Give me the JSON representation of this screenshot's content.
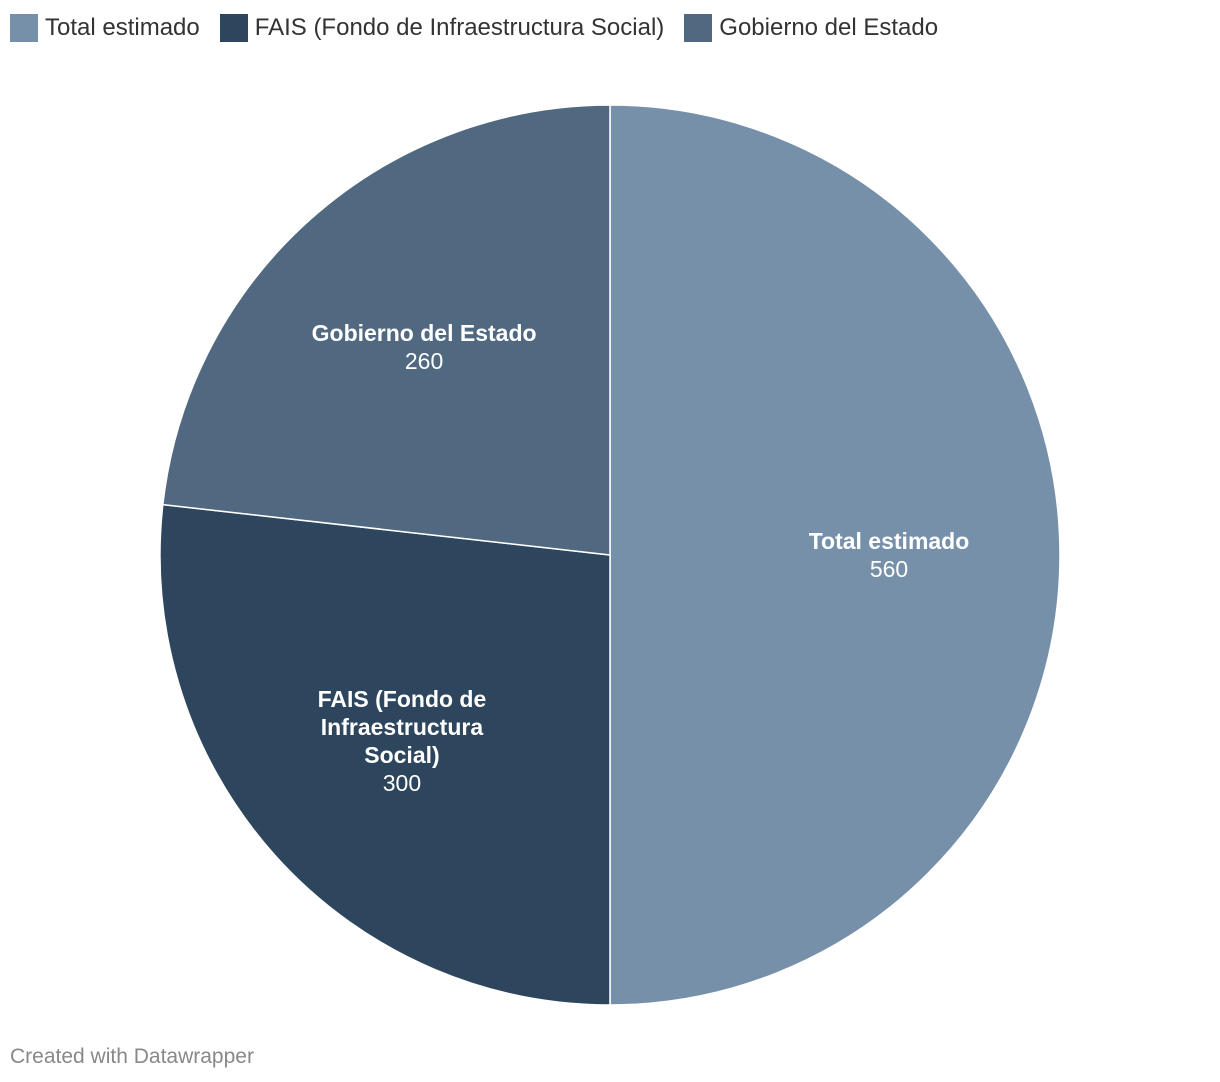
{
  "chart_data": {
    "type": "pie",
    "categories": [
      "Total estimado",
      "FAIS (Fondo de Infraestructura Social)",
      "Gobierno del Estado"
    ],
    "values": [
      560,
      300,
      260
    ],
    "colors": [
      "#7790aa",
      "#2d465e",
      "#506981"
    ],
    "slice_labels": [
      {
        "lines": [
          "Total estimado"
        ],
        "value": "560"
      },
      {
        "lines": [
          "FAIS (Fondo de",
          "Infraestructura",
          "Social)"
        ],
        "value": "300"
      },
      {
        "lines": [
          "Gobierno del Estado"
        ],
        "value": "260"
      }
    ],
    "legend_position": "top-left"
  },
  "legend": [
    {
      "label": "Total estimado",
      "color": "#7790aa"
    },
    {
      "label": "FAIS (Fondo de Infraestructura Social)",
      "color": "#2d465e"
    },
    {
      "label": "Gobierno del Estado",
      "color": "#506981"
    }
  ],
  "footer": {
    "credit": "Created with Datawrapper"
  }
}
